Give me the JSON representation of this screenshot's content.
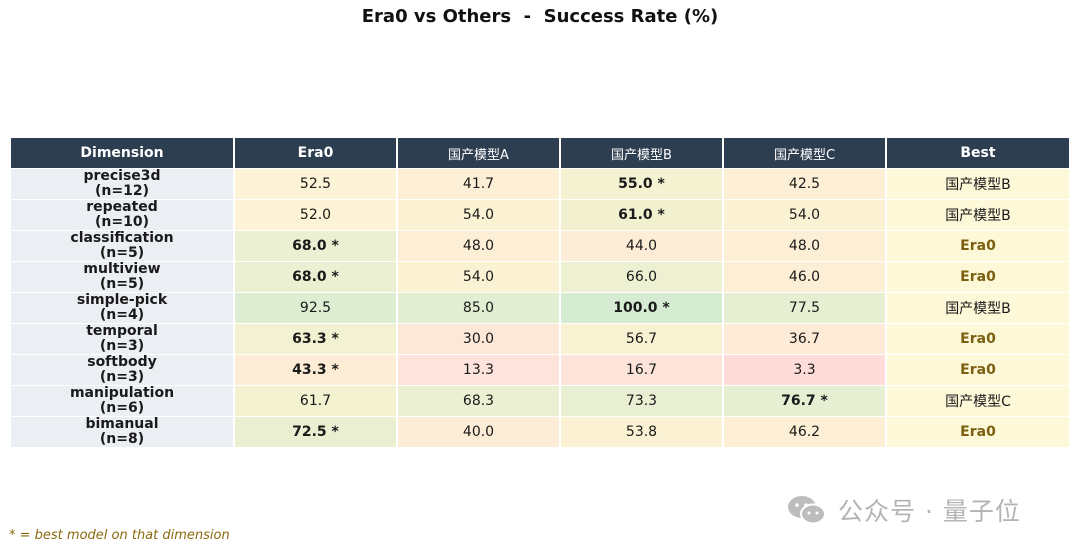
{
  "chart_data": {
    "type": "table",
    "title": "Era0 vs Others  -  Success Rate (%)",
    "columns": [
      "Dimension",
      "Era0",
      "国产模型A",
      "国产模型B",
      "国产模型C",
      "Best"
    ],
    "rows": [
      {
        "dim": "precise3d",
        "n": "(n=12)",
        "values": [
          "52.5",
          "41.7",
          "55.0 *",
          "42.5"
        ],
        "best": "国产模型B",
        "bg": [
          "#fdf3d6",
          "#fdefd6",
          "#f4f2d0",
          "#fdefd6"
        ]
      },
      {
        "dim": "repeated",
        "n": "(n=10)",
        "values": [
          "52.0",
          "54.0",
          "61.0 *",
          "54.0"
        ],
        "best": "国产模型B",
        "bg": [
          "#fdf3d6",
          "#fbf2d4",
          "#f1f1cf",
          "#fbf2d4"
        ]
      },
      {
        "dim": "classification",
        "n": "(n=5)",
        "values": [
          "68.0 *",
          "48.0",
          "44.0",
          "48.0"
        ],
        "best": "Era0",
        "bg": [
          "#ecf0d2",
          "#fdefd6",
          "#fdecd6",
          "#fdefd6"
        ]
      },
      {
        "dim": "multiview",
        "n": "(n=5)",
        "values": [
          "68.0 *",
          "54.0",
          "66.0",
          "46.0"
        ],
        "best": "Era0",
        "bg": [
          "#ecf0d2",
          "#fbf2d4",
          "#eef0d2",
          "#fdeed6"
        ]
      },
      {
        "dim": "simple-pick",
        "n": "(n=4)",
        "values": [
          "92.5",
          "85.0",
          "100.0 *",
          "77.5"
        ],
        "best": "国产模型B",
        "bg": [
          "#dcedd2",
          "#e2eed2",
          "#d6ecd2",
          "#e6efd2"
        ]
      },
      {
        "dim": "temporal",
        "n": "(n=3)",
        "values": [
          "63.3 *",
          "30.0",
          "56.7",
          "36.7"
        ],
        "best": "Era0",
        "bg": [
          "#f2f1d1",
          "#fde8d7",
          "#f8f2d2",
          "#fdead7"
        ]
      },
      {
        "dim": "softbody",
        "n": "(n=3)",
        "values": [
          "43.3 *",
          "13.3",
          "16.7",
          "3.3"
        ],
        "best": "Era0",
        "bg": [
          "#fdecd6",
          "#fde3dc",
          "#fde4db",
          "#fddcd9"
        ]
      },
      {
        "dim": "manipulation",
        "n": "(n=6)",
        "values": [
          "61.7",
          "68.3",
          "73.3",
          "76.7 *"
        ],
        "best": "国产模型C",
        "bg": [
          "#f2f1d0",
          "#ecf0d2",
          "#e8efd2",
          "#e6efd2"
        ]
      },
      {
        "dim": "bimanual",
        "n": "(n=8)",
        "values": [
          "72.5 *",
          "40.0",
          "53.8",
          "46.2"
        ],
        "best": "Era0",
        "bg": [
          "#eaefd2",
          "#fdecd6",
          "#fbf2d4",
          "#fdeed6"
        ]
      }
    ]
  },
  "footnote": "* = best model on that dimension",
  "watermark": {
    "text": "公众号 · 量子位",
    "icon": "wechat-icon"
  }
}
